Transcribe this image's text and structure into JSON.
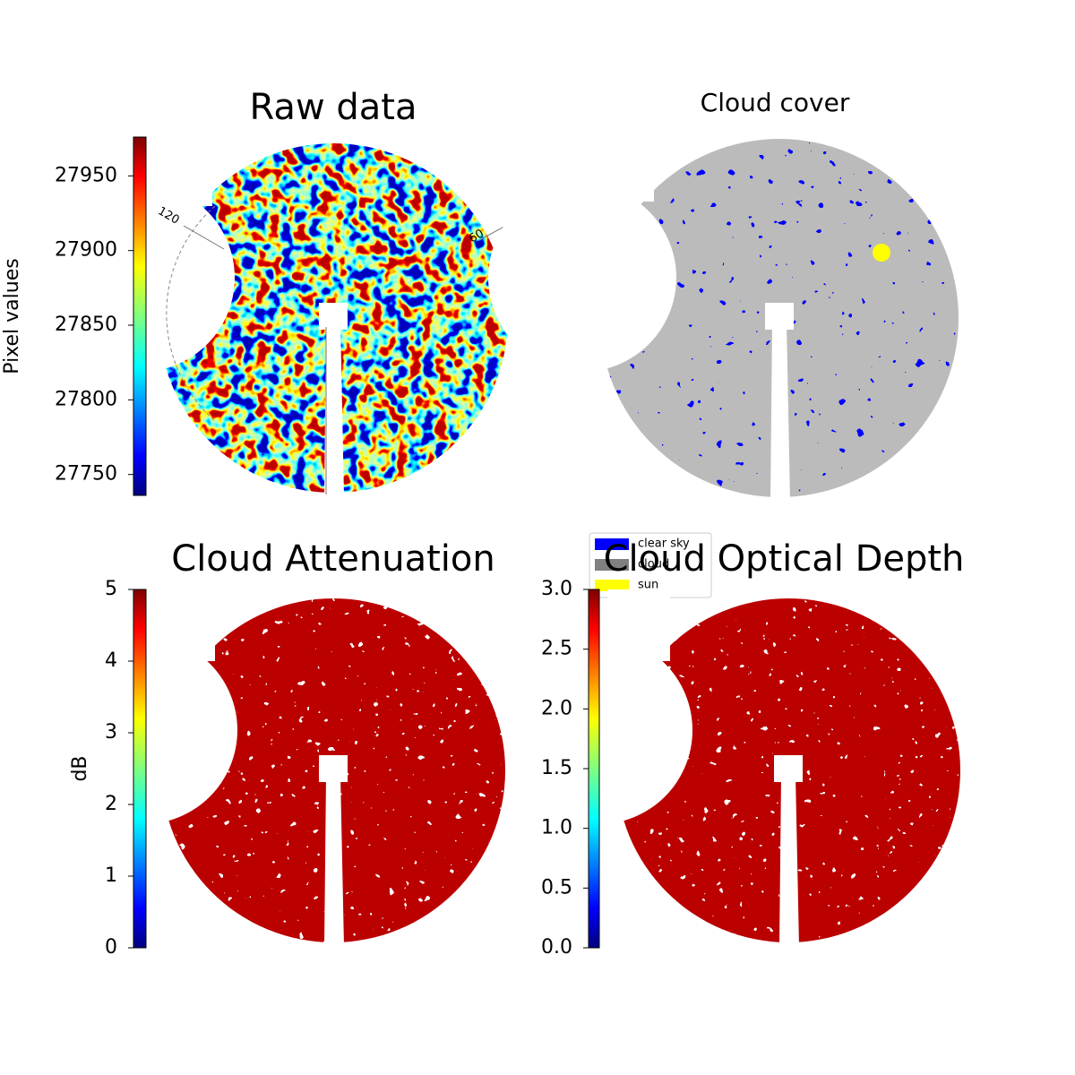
{
  "panels": [
    {
      "title": "Raw data",
      "colorbar": {
        "label": "Pixel values",
        "lim": [
          27736,
          27976
        ],
        "ticks": [
          27750,
          27800,
          27850,
          27900,
          27950
        ]
      },
      "angle_labels": [
        "120",
        "60"
      ]
    },
    {
      "title": "Cloud cover",
      "legend": [
        {
          "label": "clear sky",
          "color": "#0000ff"
        },
        {
          "label": "cloud",
          "color": "#808080"
        },
        {
          "label": "sun",
          "color": "#ffff00"
        }
      ]
    },
    {
      "title": "Cloud Attenuation",
      "colorbar": {
        "label": "dB",
        "lim": [
          0,
          5
        ],
        "ticks": [
          0,
          1,
          2,
          3,
          4,
          5
        ]
      }
    },
    {
      "title": "Cloud Optical Depth",
      "colorbar": {
        "lim": [
          0,
          3
        ],
        "ticks": [
          {
            "value": 0,
            "label": "0.0"
          },
          {
            "value": 0.5,
            "label": "0.5"
          },
          {
            "value": 1,
            "label": "1.0"
          },
          {
            "value": 1.5,
            "label": "1.5"
          },
          {
            "value": 2,
            "label": "2.0"
          },
          {
            "value": 2.5,
            "label": "2.5"
          },
          {
            "value": 3,
            "label": "3.0"
          }
        ]
      }
    }
  ]
}
